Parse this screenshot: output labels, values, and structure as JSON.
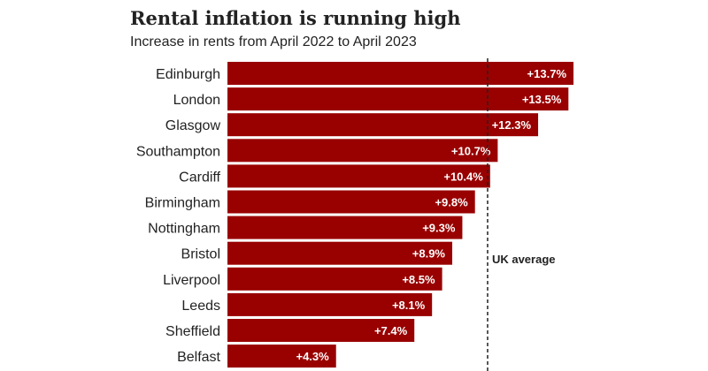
{
  "chart_data": {
    "type": "bar",
    "orientation": "horizontal",
    "title": "Rental inflation is running high",
    "subtitle": "Increase in rents from April 2022 to April 2023",
    "categories": [
      "Edinburgh",
      "London",
      "Glasgow",
      "Southampton",
      "Cardiff",
      "Birmingham",
      "Nottingham",
      "Bristol",
      "Liverpool",
      "Leeds",
      "Sheffield",
      "Belfast"
    ],
    "values": [
      13.7,
      13.5,
      12.3,
      10.7,
      10.4,
      9.8,
      9.3,
      8.9,
      8.5,
      8.1,
      7.4,
      4.3
    ],
    "value_labels": [
      "+13.7%",
      "+13.5%",
      "+12.3%",
      "+10.7%",
      "+10.4%",
      "+9.8%",
      "+9.3%",
      "+8.9%",
      "+8.5%",
      "+8.1%",
      "+7.4%",
      "+4.3%"
    ],
    "reference_line": {
      "label": "UK average",
      "value": 10.3,
      "style": "dashed"
    },
    "xlim": [
      0,
      13.7
    ],
    "bar_color": "#990000",
    "grid": false,
    "legend": "none"
  }
}
